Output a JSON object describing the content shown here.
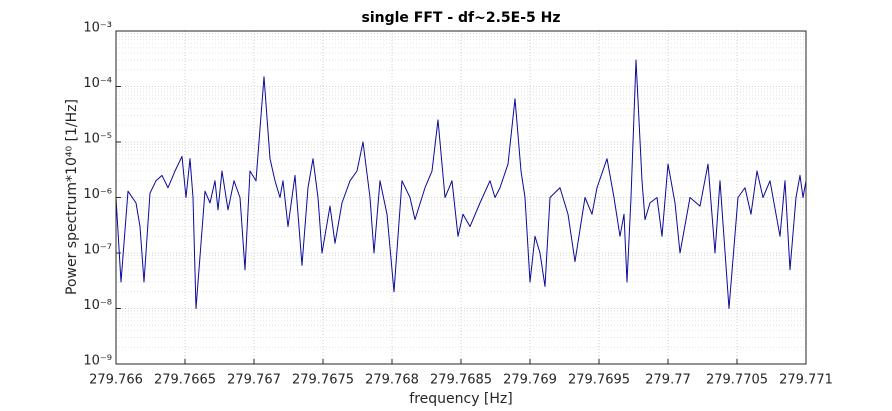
{
  "chart_data": {
    "type": "line",
    "title": "single FFT - df~2.5E-5 Hz",
    "xlabel": "frequency [Hz]",
    "ylabel": "Power spectrum*10⁴⁰ [1/Hz]",
    "xlim": [
      279.766,
      279.771
    ],
    "xticks": [
      279.766,
      279.7665,
      279.767,
      279.7675,
      279.768,
      279.7685,
      279.769,
      279.7695,
      279.77,
      279.7705,
      279.771
    ],
    "ylim": [
      1e-09,
      0.001
    ],
    "yticks": [
      {
        "value": 1e-09,
        "label": "10⁻⁹"
      },
      {
        "value": 1e-08,
        "label": "10⁻⁸"
      },
      {
        "value": 1e-07,
        "label": "10⁻⁷"
      },
      {
        "value": 1e-06,
        "label": "10⁻⁶"
      },
      {
        "value": 1e-05,
        "label": "10⁻⁵"
      },
      {
        "value": 0.0001,
        "label": "10⁻⁴"
      },
      {
        "value": 0.001,
        "label": "10⁻³"
      }
    ],
    "log_y": true,
    "grid": true,
    "minor_grid": true,
    "series": [
      {
        "color": "#0a0a9a",
        "x": [
          279.766,
          279.7660362,
          279.766087,
          279.7661449,
          279.7661739,
          279.7662029,
          279.7662464,
          279.7662899,
          279.7663333,
          279.7663768,
          279.7664275,
          279.7664783,
          279.7665072,
          279.7665362,
          279.766558,
          279.7665797,
          279.7666449,
          279.7666812,
          279.7667174,
          279.7667391,
          279.7667681,
          279.7668116,
          279.7668551,
          279.7668986,
          279.7669348,
          279.766971,
          279.7670145,
          279.7670725,
          279.767116,
          279.7671522,
          279.7671884,
          279.7672101,
          279.7672464,
          279.7672971,
          279.7673478,
          279.7673913,
          279.7674275,
          279.7674638,
          279.7674928,
          279.7675507,
          279.767587,
          279.7676377,
          279.7676957,
          279.7677464,
          279.7677899,
          279.7678406,
          279.7678696,
          279.767913,
          279.7679638,
          279.7680145,
          279.7680725,
          279.7681304,
          279.7681667,
          279.7682391,
          279.7682899,
          279.7683333,
          279.7683841,
          279.7684348,
          279.7684783,
          279.7685145,
          279.7685652,
          279.7686377,
          279.7687101,
          279.7687464,
          279.7687826,
          279.7688406,
          279.7688913,
          279.7689348,
          279.7689638,
          279.769,
          279.7690362,
          279.7690725,
          279.7691087,
          279.769145,
          279.7692174,
          279.7692754,
          279.7693261,
          279.7693986,
          279.7694493,
          279.7694855,
          279.769558,
          279.7696087,
          279.7696522,
          279.7696812,
          279.7697029,
          279.7697319,
          279.7697681,
          279.7698116,
          279.7698333,
          279.7698696,
          279.7699203,
          279.7699565,
          279.77,
          279.7700507,
          279.770087,
          279.7701594,
          279.7702319,
          279.7702899,
          279.7703406,
          279.7703768,
          279.770442,
          279.7705072,
          279.770558,
          279.7706014,
          279.7706449,
          279.7706884,
          279.7707391,
          279.7708116,
          279.7708478,
          279.770884,
          279.7709275,
          279.7709565,
          279.7709783,
          279.771
        ],
        "values": [
          1e-06,
          3e-08,
          1.3e-06,
          8e-07,
          3e-07,
          3e-08,
          1.2e-06,
          2e-06,
          2.5e-06,
          1.5e-06,
          3e-06,
          5.5e-06,
          1e-06,
          5e-06,
          1e-06,
          1e-08,
          1.3e-06,
          8e-07,
          2e-06,
          6e-07,
          3e-06,
          6e-07,
          2e-06,
          1e-06,
          5e-08,
          3e-06,
          2e-06,
          0.00015,
          5e-06,
          2e-06,
          1e-06,
          2e-06,
          3e-07,
          2.5e-06,
          6e-08,
          1.5e-06,
          5e-06,
          1e-06,
          1e-07,
          7e-07,
          1.5e-07,
          8e-07,
          2e-06,
          3e-06,
          1e-05,
          1e-06,
          1e-07,
          2e-06,
          5e-07,
          2e-08,
          2e-06,
          1e-06,
          4e-07,
          1.5e-06,
          3e-06,
          2.5e-05,
          1e-06,
          2e-06,
          2e-07,
          5e-07,
          3e-07,
          8e-07,
          2e-06,
          1e-06,
          1.5e-06,
          4e-06,
          6e-05,
          3e-06,
          1e-06,
          3e-08,
          2e-07,
          1e-07,
          2.5e-08,
          1e-06,
          1.5e-06,
          5e-07,
          7e-08,
          1e-06,
          5e-07,
          1.5e-06,
          5e-06,
          1e-06,
          2e-07,
          5e-07,
          3e-08,
          1e-06,
          0.0003,
          2e-06,
          4e-07,
          8e-07,
          1e-06,
          2e-07,
          4e-06,
          8e-07,
          1e-07,
          1e-06,
          7e-07,
          4e-06,
          1e-07,
          2e-06,
          1e-08,
          1e-06,
          1.5e-06,
          5e-07,
          3e-06,
          1e-06,
          2e-06,
          2e-07,
          2e-06,
          5e-08,
          1e-06,
          2.5e-06,
          1e-06,
          2e-06
        ]
      }
    ]
  }
}
